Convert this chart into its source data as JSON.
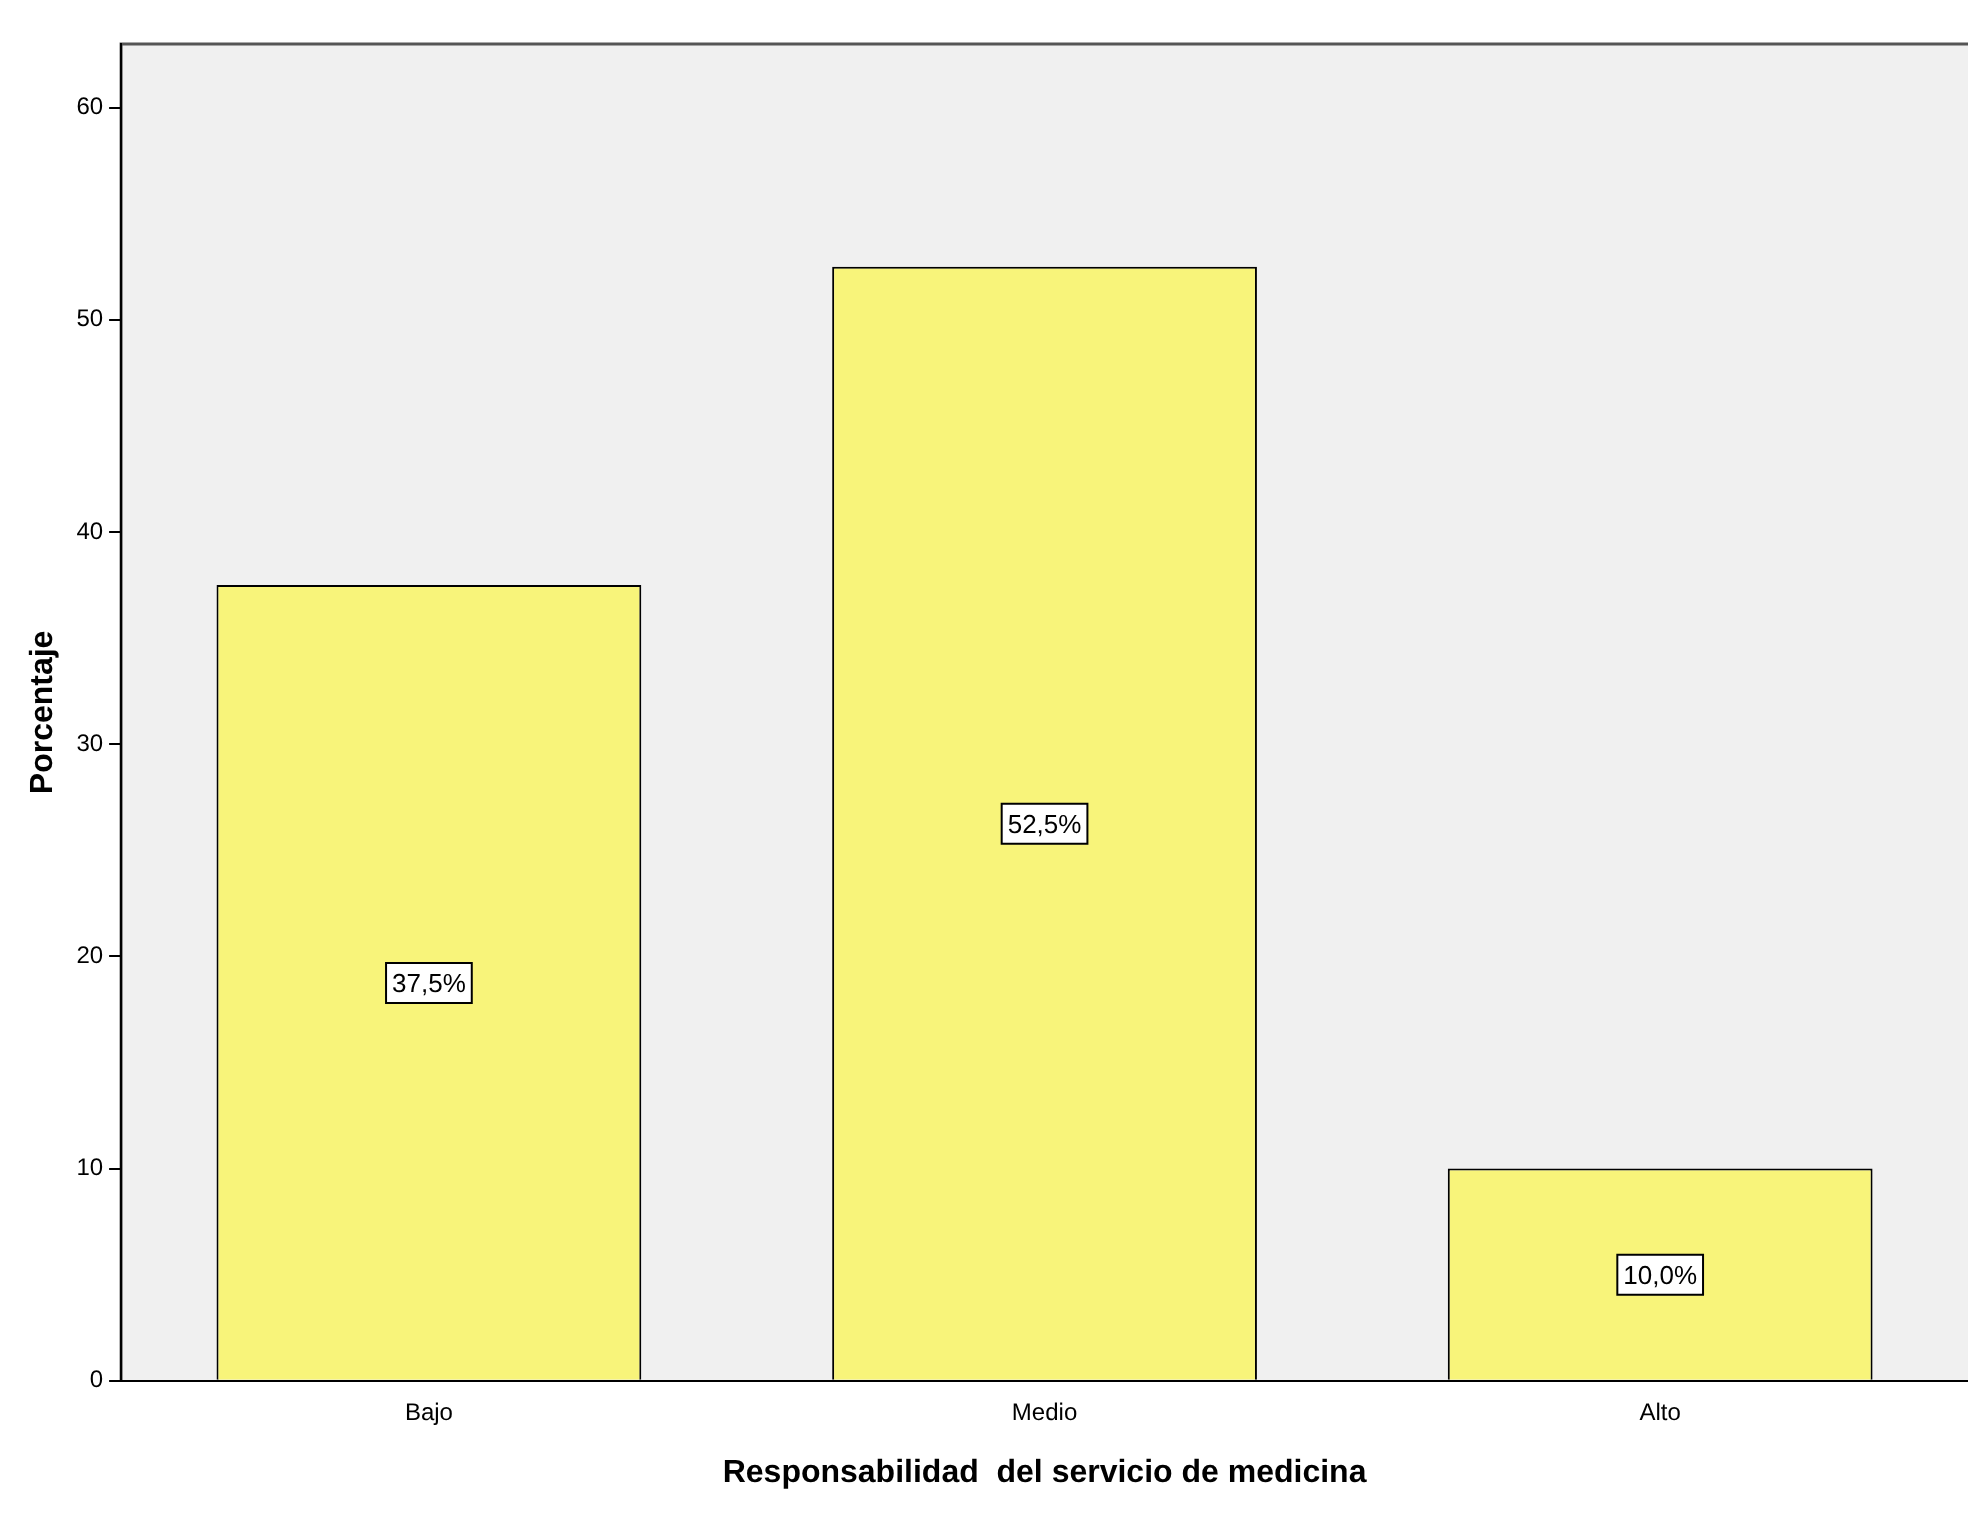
{
  "chart_data": {
    "type": "bar",
    "xlabel": "Responsabilidad  del servicio de medicina",
    "ylabel": "Porcentaje",
    "categories": [
      "Bajo",
      "Medio",
      "Alto"
    ],
    "values": [
      37.5,
      52.5,
      10.0
    ],
    "value_labels": [
      "37,5%",
      "52,5%",
      "10,0%"
    ],
    "color": "#f8f47a",
    "ylim": [
      0,
      63
    ],
    "yticks": [
      0,
      10,
      20,
      30,
      40,
      50,
      60
    ],
    "grid": false,
    "legend": false
  }
}
